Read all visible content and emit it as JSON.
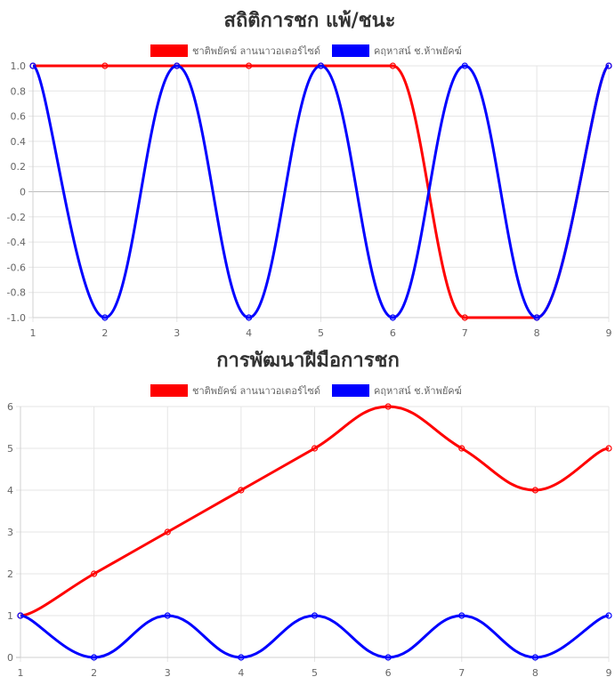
{
  "colors": {
    "series_a": "#ff0000",
    "series_b": "#0000ff"
  },
  "chart_data": [
    {
      "type": "line",
      "title": "สถิติการชก แพ้/ชนะ",
      "x": [
        1,
        2,
        3,
        4,
        5,
        6,
        7,
        8,
        9
      ],
      "series": [
        {
          "name": "ชาติพยัคฆ์ ลานนาวอเตอร์ไซด์",
          "color": "#ff0000",
          "values": [
            1,
            1,
            1,
            1,
            1,
            1,
            -1,
            -1,
            1
          ]
        },
        {
          "name": "คฤหาสน์ ช.ห้าพยัคฆ์",
          "color": "#0000ff",
          "values": [
            1,
            -1,
            1,
            -1,
            1,
            -1,
            1,
            -1,
            1
          ]
        }
      ],
      "ylim": [
        -1,
        1
      ],
      "yticks": [
        "1.0",
        "0.8",
        "0.6",
        "0.4",
        "0.2",
        "0",
        "-0.2",
        "-0.4",
        "-0.6",
        "-0.8",
        "-1.0"
      ],
      "grid": true,
      "legend": "top-center"
    },
    {
      "type": "line",
      "title": "การพัฒนาฝีมือการชก",
      "x": [
        1,
        2,
        3,
        4,
        5,
        6,
        7,
        8,
        9
      ],
      "series": [
        {
          "name": "ชาติพยัคฆ์ ลานนาวอเตอร์ไซด์",
          "color": "#ff0000",
          "values": [
            1,
            2,
            3,
            4,
            5,
            6,
            5,
            4,
            5
          ]
        },
        {
          "name": "คฤหาสน์ ช.ห้าพยัคฆ์",
          "color": "#0000ff",
          "values": [
            1,
            0,
            1,
            0,
            1,
            0,
            1,
            0,
            1
          ]
        }
      ],
      "ylim": [
        0,
        6
      ],
      "yticks": [
        "6",
        "5",
        "4",
        "3",
        "2",
        "1",
        "0"
      ],
      "grid": true,
      "legend": "top-center"
    }
  ]
}
